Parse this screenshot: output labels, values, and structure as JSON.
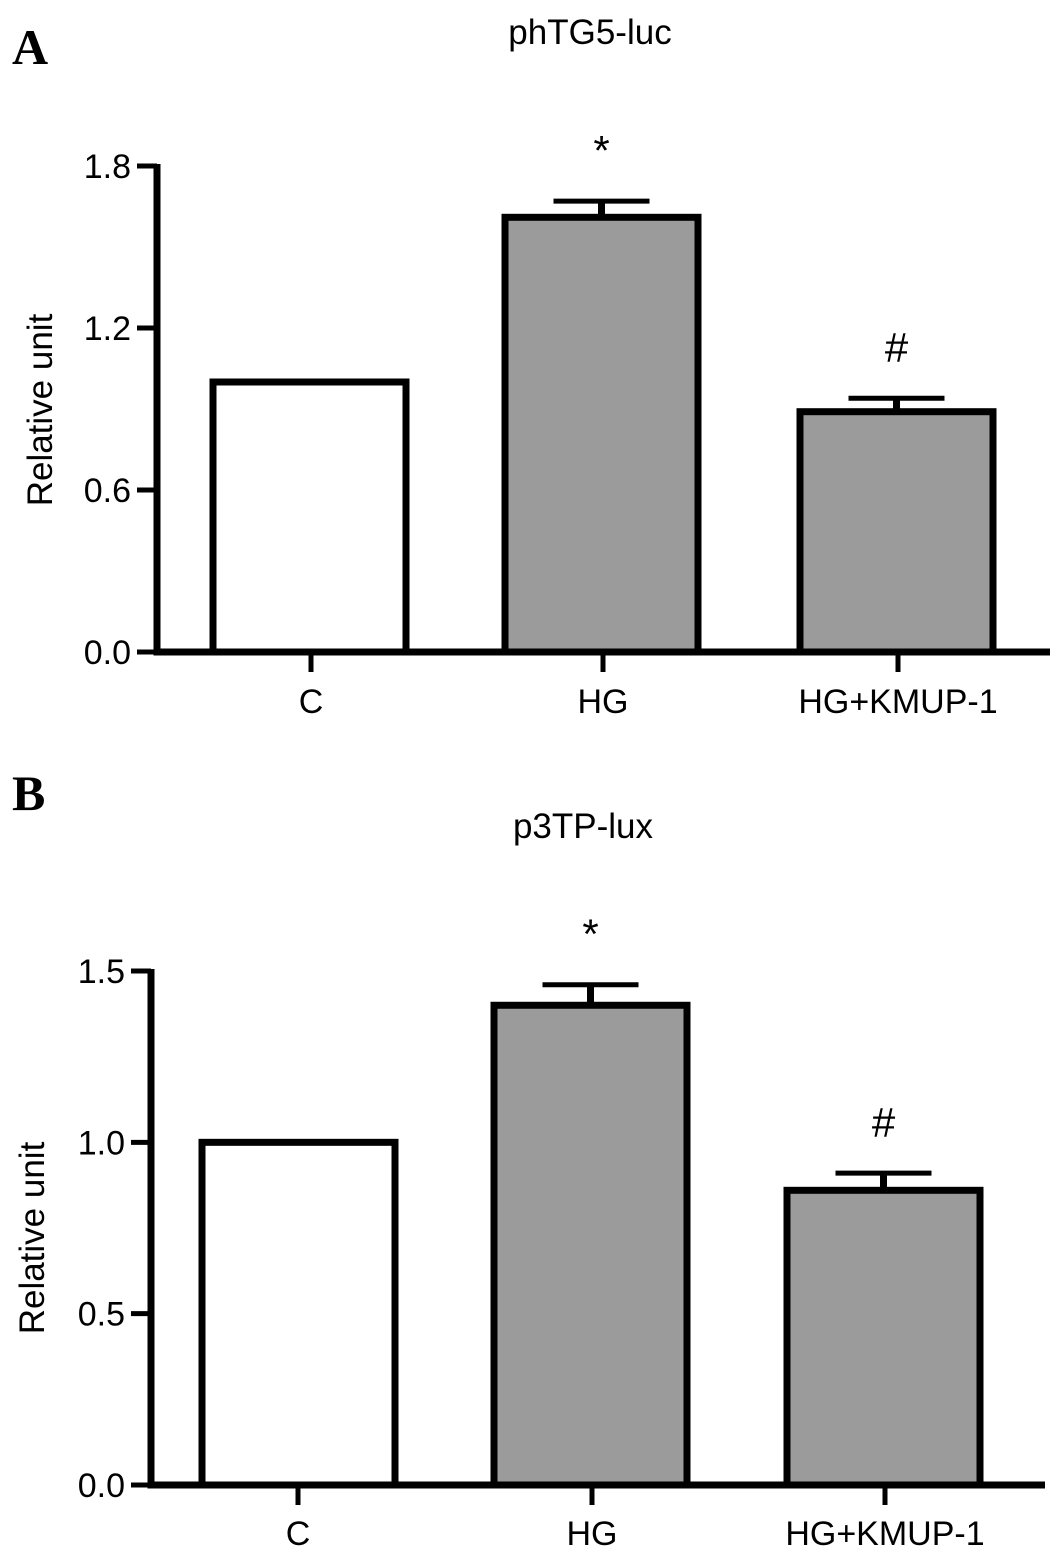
{
  "chart_data": [
    {
      "panel": "A",
      "type": "bar",
      "title": "phTG5-luc",
      "ylabel": "Relative unit",
      "xlabel": "",
      "categories": [
        "C",
        "HG",
        "HG+KMUP-1"
      ],
      "values": [
        1.0,
        1.61,
        0.89
      ],
      "errors": [
        0,
        0.06,
        0.05
      ],
      "annotations": [
        "",
        "*",
        "#"
      ],
      "fills": [
        "#ffffff",
        "#9b9b9b",
        "#9b9b9b"
      ],
      "ylim": [
        0,
        1.8
      ],
      "yticks": [
        0.0,
        0.6,
        1.2,
        1.8
      ],
      "ytick_labels": [
        "0.0",
        "0.6",
        "1.2",
        "1.8"
      ],
      "grid": false
    },
    {
      "panel": "B",
      "type": "bar",
      "title": "p3TP-lux",
      "ylabel": "Relative unit",
      "xlabel": "",
      "categories": [
        "C",
        "HG",
        "HG+KMUP-1"
      ],
      "values": [
        1.0,
        1.4,
        0.86
      ],
      "errors": [
        0,
        0.06,
        0.05
      ],
      "annotations": [
        "",
        "*",
        "#"
      ],
      "fills": [
        "#ffffff",
        "#9b9b9b",
        "#9b9b9b"
      ],
      "ylim": [
        0,
        1.5
      ],
      "yticks": [
        0.0,
        0.5,
        1.0,
        1.5
      ],
      "ytick_labels": [
        "0.0",
        "0.5",
        "1.0",
        "1.5"
      ],
      "grid": false
    }
  ]
}
